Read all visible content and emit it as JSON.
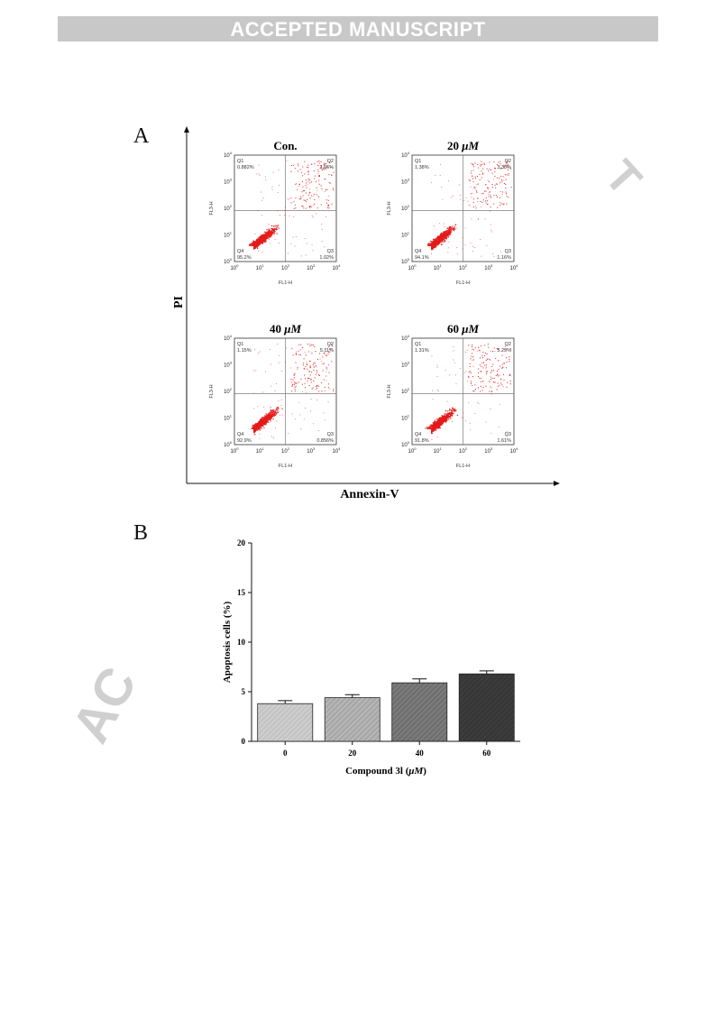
{
  "header": {
    "banner": "ACCEPTED MANUSCRIPT"
  },
  "watermark": {
    "left": "AC",
    "right": "T"
  },
  "panelA": {
    "label": "A",
    "xlabel": "Annexin-V",
    "ylabel": "PI",
    "plot_xlabel": "FL1-H",
    "plot_ylabel": "FL3-H",
    "decades": [
      "0",
      "1",
      "2",
      "3",
      "4"
    ],
    "plots": [
      {
        "title_main": "Con.",
        "title_unit": "",
        "q1": "0.882%",
        "q2": "2.96%",
        "q3": "1.02%",
        "q4": "95.2%"
      },
      {
        "title_main": "20 ",
        "title_unit": "μM",
        "q1": "1.38%",
        "q2": "3.38%",
        "q3": "1.16%",
        "q4": "94.1%"
      },
      {
        "title_main": "40 ",
        "title_unit": "μM",
        "q1": "1.15%",
        "q2": "5.11%",
        "q3": "0.856%",
        "q4": "92.9%"
      },
      {
        "title_main": "60 ",
        "title_unit": "μM",
        "q1": "1.31%",
        "q2": "5.29%",
        "q3": "1.61%",
        "q4": "91.8%"
      }
    ],
    "quadrant_labels": {
      "q1": "Q1",
      "q2": "Q2",
      "q3": "Q3",
      "q4": "Q4"
    }
  },
  "panelB": {
    "label": "B",
    "chart_data": {
      "type": "bar",
      "categories": [
        "0",
        "20",
        "40",
        "60"
      ],
      "values": [
        3.8,
        4.4,
        5.9,
        6.8
      ],
      "errors": [
        0.3,
        0.3,
        0.4,
        0.3
      ],
      "xlabel_main": "Compound 3l (",
      "xlabel_unit": "μM",
      "xlabel_end": ")",
      "ylabel": "Apoptosis cells (%)",
      "ylim": [
        0,
        20
      ],
      "yticks": [
        "0",
        "5",
        "10",
        "15",
        "20"
      ],
      "bar_colors": [
        "#c4c4c4",
        "#a8a8a8",
        "#7a7a7a",
        "#3c3c3c"
      ]
    }
  }
}
